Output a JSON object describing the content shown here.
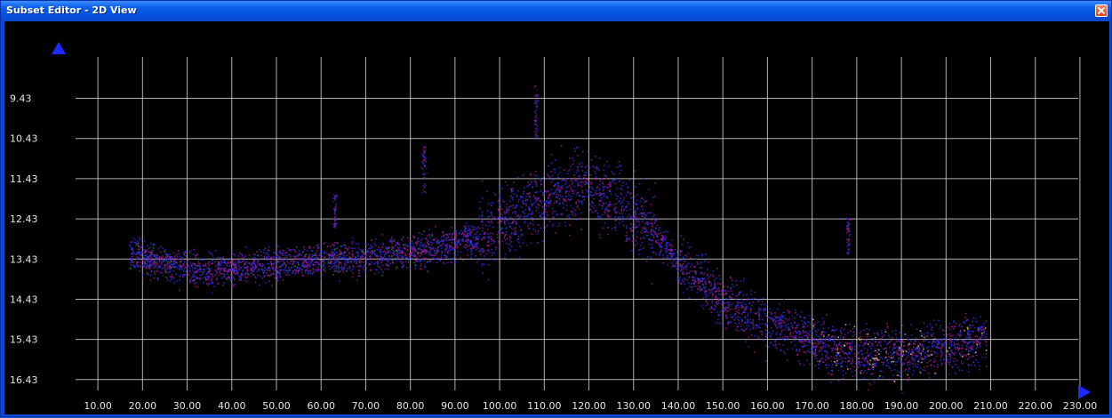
{
  "window": {
    "title": "Subset Editor - 2D View",
    "close_icon": "close-icon"
  },
  "colors": {
    "background": "#000000",
    "grid": "#cfcfcf",
    "axis_arrow": "#1a2bff",
    "label": "#e6e6e6",
    "series": [
      "#2a35ff",
      "#b0189a",
      "#2f8f2f",
      "#e8e070"
    ]
  },
  "chart_data": {
    "type": "scatter",
    "x_ticks": [
      "10.00",
      "20.00",
      "30.00",
      "40.00",
      "50.00",
      "60.00",
      "70.00",
      "80.00",
      "90.00",
      "100.00",
      "110.00",
      "120.00",
      "130.00",
      "140.00",
      "150.00",
      "160.00",
      "170.00",
      "180.00",
      "190.00",
      "200.00",
      "210.00",
      "220.00",
      "230.00"
    ],
    "y_ticks": [
      "9.43",
      "10.43",
      "11.43",
      "12.43",
      "13.43",
      "14.43",
      "15.43",
      "16.43"
    ],
    "xlim": [
      5,
      232
    ],
    "ylim": [
      8.4,
      16.7
    ],
    "y_inverted": true,
    "grid": true,
    "profile": {
      "x": [
        17,
        25,
        35,
        45,
        55,
        65,
        75,
        85,
        95,
        105,
        112,
        118,
        125,
        132,
        140,
        150,
        160,
        170,
        180,
        190,
        200,
        209
      ],
      "y": [
        13.3,
        13.55,
        13.7,
        13.6,
        13.5,
        13.4,
        13.3,
        13.2,
        12.9,
        12.3,
        11.8,
        11.6,
        11.9,
        12.5,
        13.5,
        14.5,
        15.0,
        15.5,
        15.8,
        15.8,
        15.6,
        15.4
      ]
    }
  }
}
